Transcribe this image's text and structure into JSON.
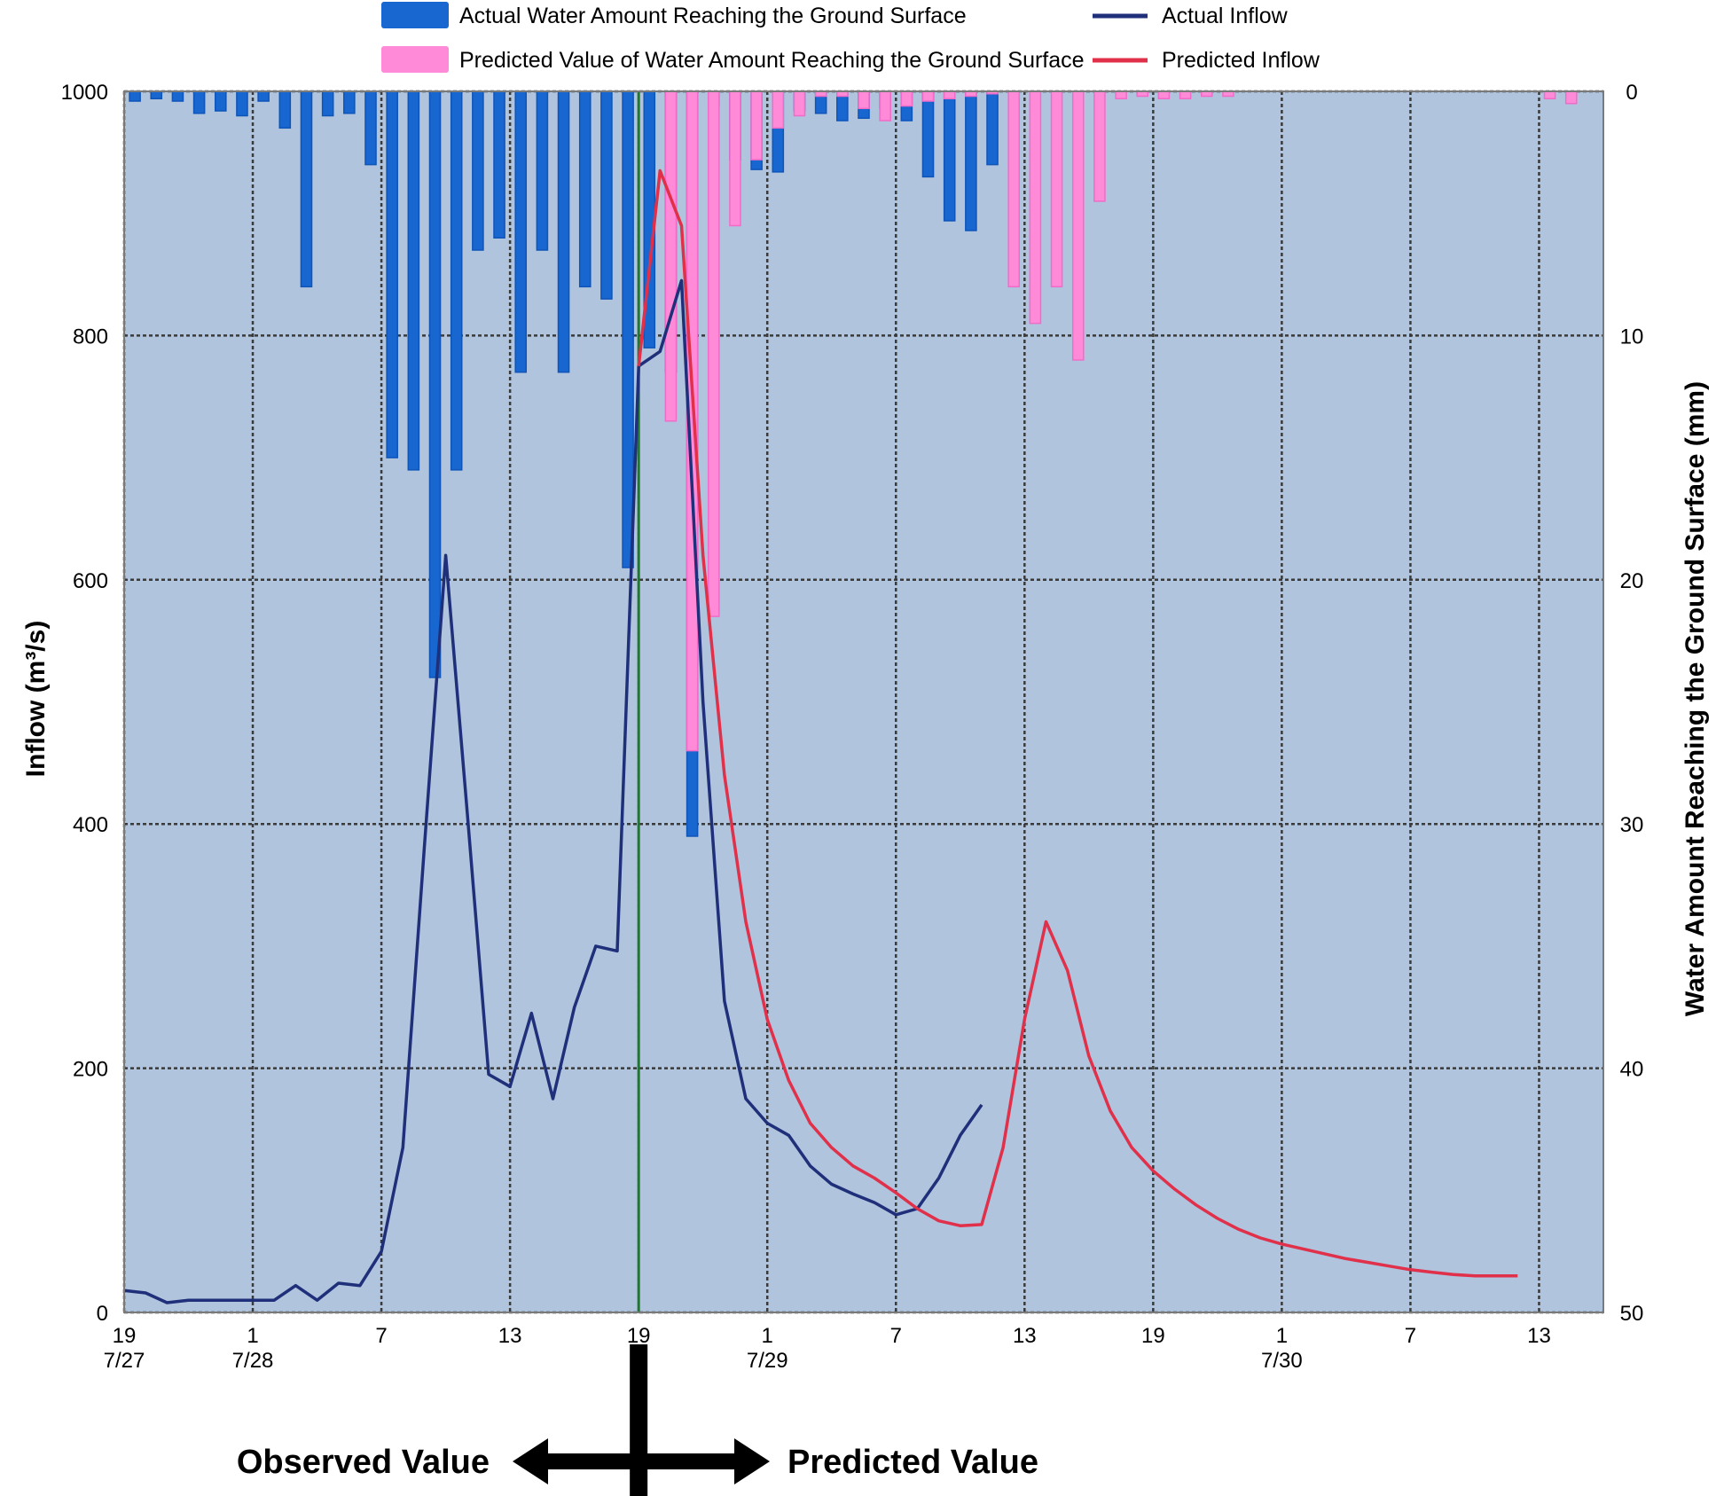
{
  "chart_data": {
    "type": "bar+line",
    "xlabel": "",
    "ylabel": "Inflow (m³/s)",
    "y2label": "Water Amount Reaching the Ground Surface (mm)",
    "ylim": [
      0,
      1000
    ],
    "y2lim": [
      0,
      50
    ],
    "y2_inverted": true,
    "xlim": [
      0,
      69
    ],
    "grid": true,
    "plot_background": "#b0c4de",
    "x_unit": "hours from 7/27 19:00 (1-hour bins)",
    "x_ticks": [
      {
        "x": 0,
        "label": "19",
        "sub": "7/27"
      },
      {
        "x": 6,
        "label": "1",
        "sub": "7/28"
      },
      {
        "x": 12,
        "label": "7",
        "sub": ""
      },
      {
        "x": 18,
        "label": "13",
        "sub": ""
      },
      {
        "x": 24,
        "label": "19",
        "sub": ""
      },
      {
        "x": 30,
        "label": "1",
        "sub": "7/29"
      },
      {
        "x": 36,
        "label": "7",
        "sub": ""
      },
      {
        "x": 42,
        "label": "13",
        "sub": ""
      },
      {
        "x": 48,
        "label": "19",
        "sub": ""
      },
      {
        "x": 54,
        "label": "1",
        "sub": "7/30"
      },
      {
        "x": 60,
        "label": "7",
        "sub": ""
      },
      {
        "x": 66,
        "label": "13",
        "sub": ""
      }
    ],
    "y_ticks": [
      0,
      200,
      400,
      600,
      800,
      1000
    ],
    "y2_ticks": [
      0,
      10,
      20,
      30,
      40,
      50
    ],
    "divider_x": 24,
    "legend": [
      {
        "label": "Actual Water Amount Reaching the Ground Surface",
        "kind": "bar",
        "color": "#1866d0"
      },
      {
        "label": "Predicted Value of Water Amount Reaching the Ground Surface",
        "kind": "bar",
        "color": "#ff8ad8"
      },
      {
        "label": "Actual Inflow",
        "kind": "line",
        "color": "#1f2f7a"
      },
      {
        "label": "Predicted Inflow",
        "kind": "line",
        "color": "#e0304a"
      }
    ],
    "series": [
      {
        "name": "Actual Water Amount Reaching the Ground Surface",
        "kind": "bar",
        "axis": "right",
        "color": "#1866d0",
        "x": [
          0,
          1,
          2,
          3,
          4,
          5,
          6,
          7,
          8,
          9,
          10,
          11,
          12,
          13,
          14,
          15,
          16,
          17,
          18,
          19,
          20,
          21,
          22,
          23,
          24,
          25,
          26,
          27,
          28,
          29,
          30,
          31,
          32,
          33,
          34,
          35,
          36,
          37,
          38,
          39,
          40
        ],
        "values": [
          0.4,
          0.3,
          0.4,
          0.9,
          0.8,
          1.0,
          0.4,
          1.5,
          8.0,
          1.0,
          0.9,
          3.0,
          15.0,
          15.5,
          24.0,
          15.5,
          6.5,
          6.0,
          11.5,
          6.5,
          11.5,
          8.0,
          8.5,
          19.5,
          10.5,
          11.5,
          30.5,
          0.6,
          2.8,
          3.2,
          3.3,
          0.8,
          0.9,
          1.2,
          1.1,
          0.7,
          1.2,
          3.5,
          5.3,
          5.7,
          3.0
        ]
      },
      {
        "name": "Predicted Value of Water Amount Reaching the Ground Surface",
        "kind": "bar",
        "axis": "right",
        "color": "#ff8ad8",
        "x": [
          25,
          26,
          27,
          28,
          29,
          30,
          31,
          32,
          33,
          34,
          35,
          36,
          37,
          38,
          39,
          40,
          41,
          42,
          43,
          44,
          45,
          46,
          47,
          48,
          49,
          50,
          51,
          52,
          53,
          54,
          55,
          56,
          57,
          58,
          59,
          60,
          61,
          62,
          63,
          64,
          65,
          66,
          67,
          68
        ],
        "values": [
          13.5,
          27.0,
          21.5,
          5.5,
          2.8,
          1.5,
          1.0,
          0.2,
          0.2,
          0.7,
          1.2,
          0.6,
          0.4,
          0.3,
          0.2,
          0.1,
          8.0,
          9.5,
          8.0,
          11.0,
          4.5,
          0.3,
          0.2,
          0.3,
          0.3,
          0.2,
          0.2,
          0,
          0,
          0,
          0,
          0,
          0,
          0,
          0,
          0,
          0,
          0,
          0,
          0,
          0,
          0.3,
          0.5,
          0
        ]
      },
      {
        "name": "Actual Inflow",
        "kind": "line",
        "axis": "left",
        "color": "#1f2f7a",
        "x": [
          0,
          1,
          2,
          3,
          4,
          5,
          6,
          7,
          8,
          9,
          10,
          11,
          12,
          13,
          14,
          15,
          16,
          17,
          18,
          19,
          20,
          21,
          22,
          23,
          24,
          25,
          26,
          27,
          28,
          29,
          30,
          31,
          32,
          33,
          34,
          35,
          36,
          37,
          38,
          39,
          40
        ],
        "values": [
          18,
          16,
          8,
          10,
          10,
          10,
          10,
          10,
          22,
          10,
          24,
          22,
          50,
          135,
          380,
          620,
          410,
          195,
          185,
          245,
          175,
          250,
          300,
          296,
          775,
          787,
          845,
          500,
          255,
          175,
          155,
          145,
          120,
          105,
          97,
          90,
          80,
          85,
          110,
          145,
          170
        ]
      },
      {
        "name": "Predicted Inflow",
        "kind": "line",
        "axis": "left",
        "color": "#e0304a",
        "x": [
          24,
          25,
          26,
          27,
          28,
          29,
          30,
          31,
          32,
          33,
          34,
          35,
          36,
          37,
          38,
          39,
          40,
          41,
          42,
          43,
          44,
          45,
          46,
          47,
          48,
          49,
          50,
          51,
          52,
          53,
          54,
          55,
          56,
          57,
          58,
          59,
          60,
          61,
          62,
          63,
          64,
          65
        ],
        "values": [
          775,
          935,
          890,
          620,
          440,
          320,
          240,
          190,
          155,
          135,
          120,
          110,
          98,
          85,
          75,
          71,
          72,
          135,
          240,
          320,
          280,
          210,
          165,
          135,
          116,
          101,
          88,
          77,
          68,
          61,
          56,
          52,
          48,
          44,
          41,
          38,
          35,
          33,
          31,
          30,
          30,
          30
        ]
      }
    ],
    "annotations": {
      "observed": "Observed Value",
      "predicted": "Predicted Value"
    }
  }
}
